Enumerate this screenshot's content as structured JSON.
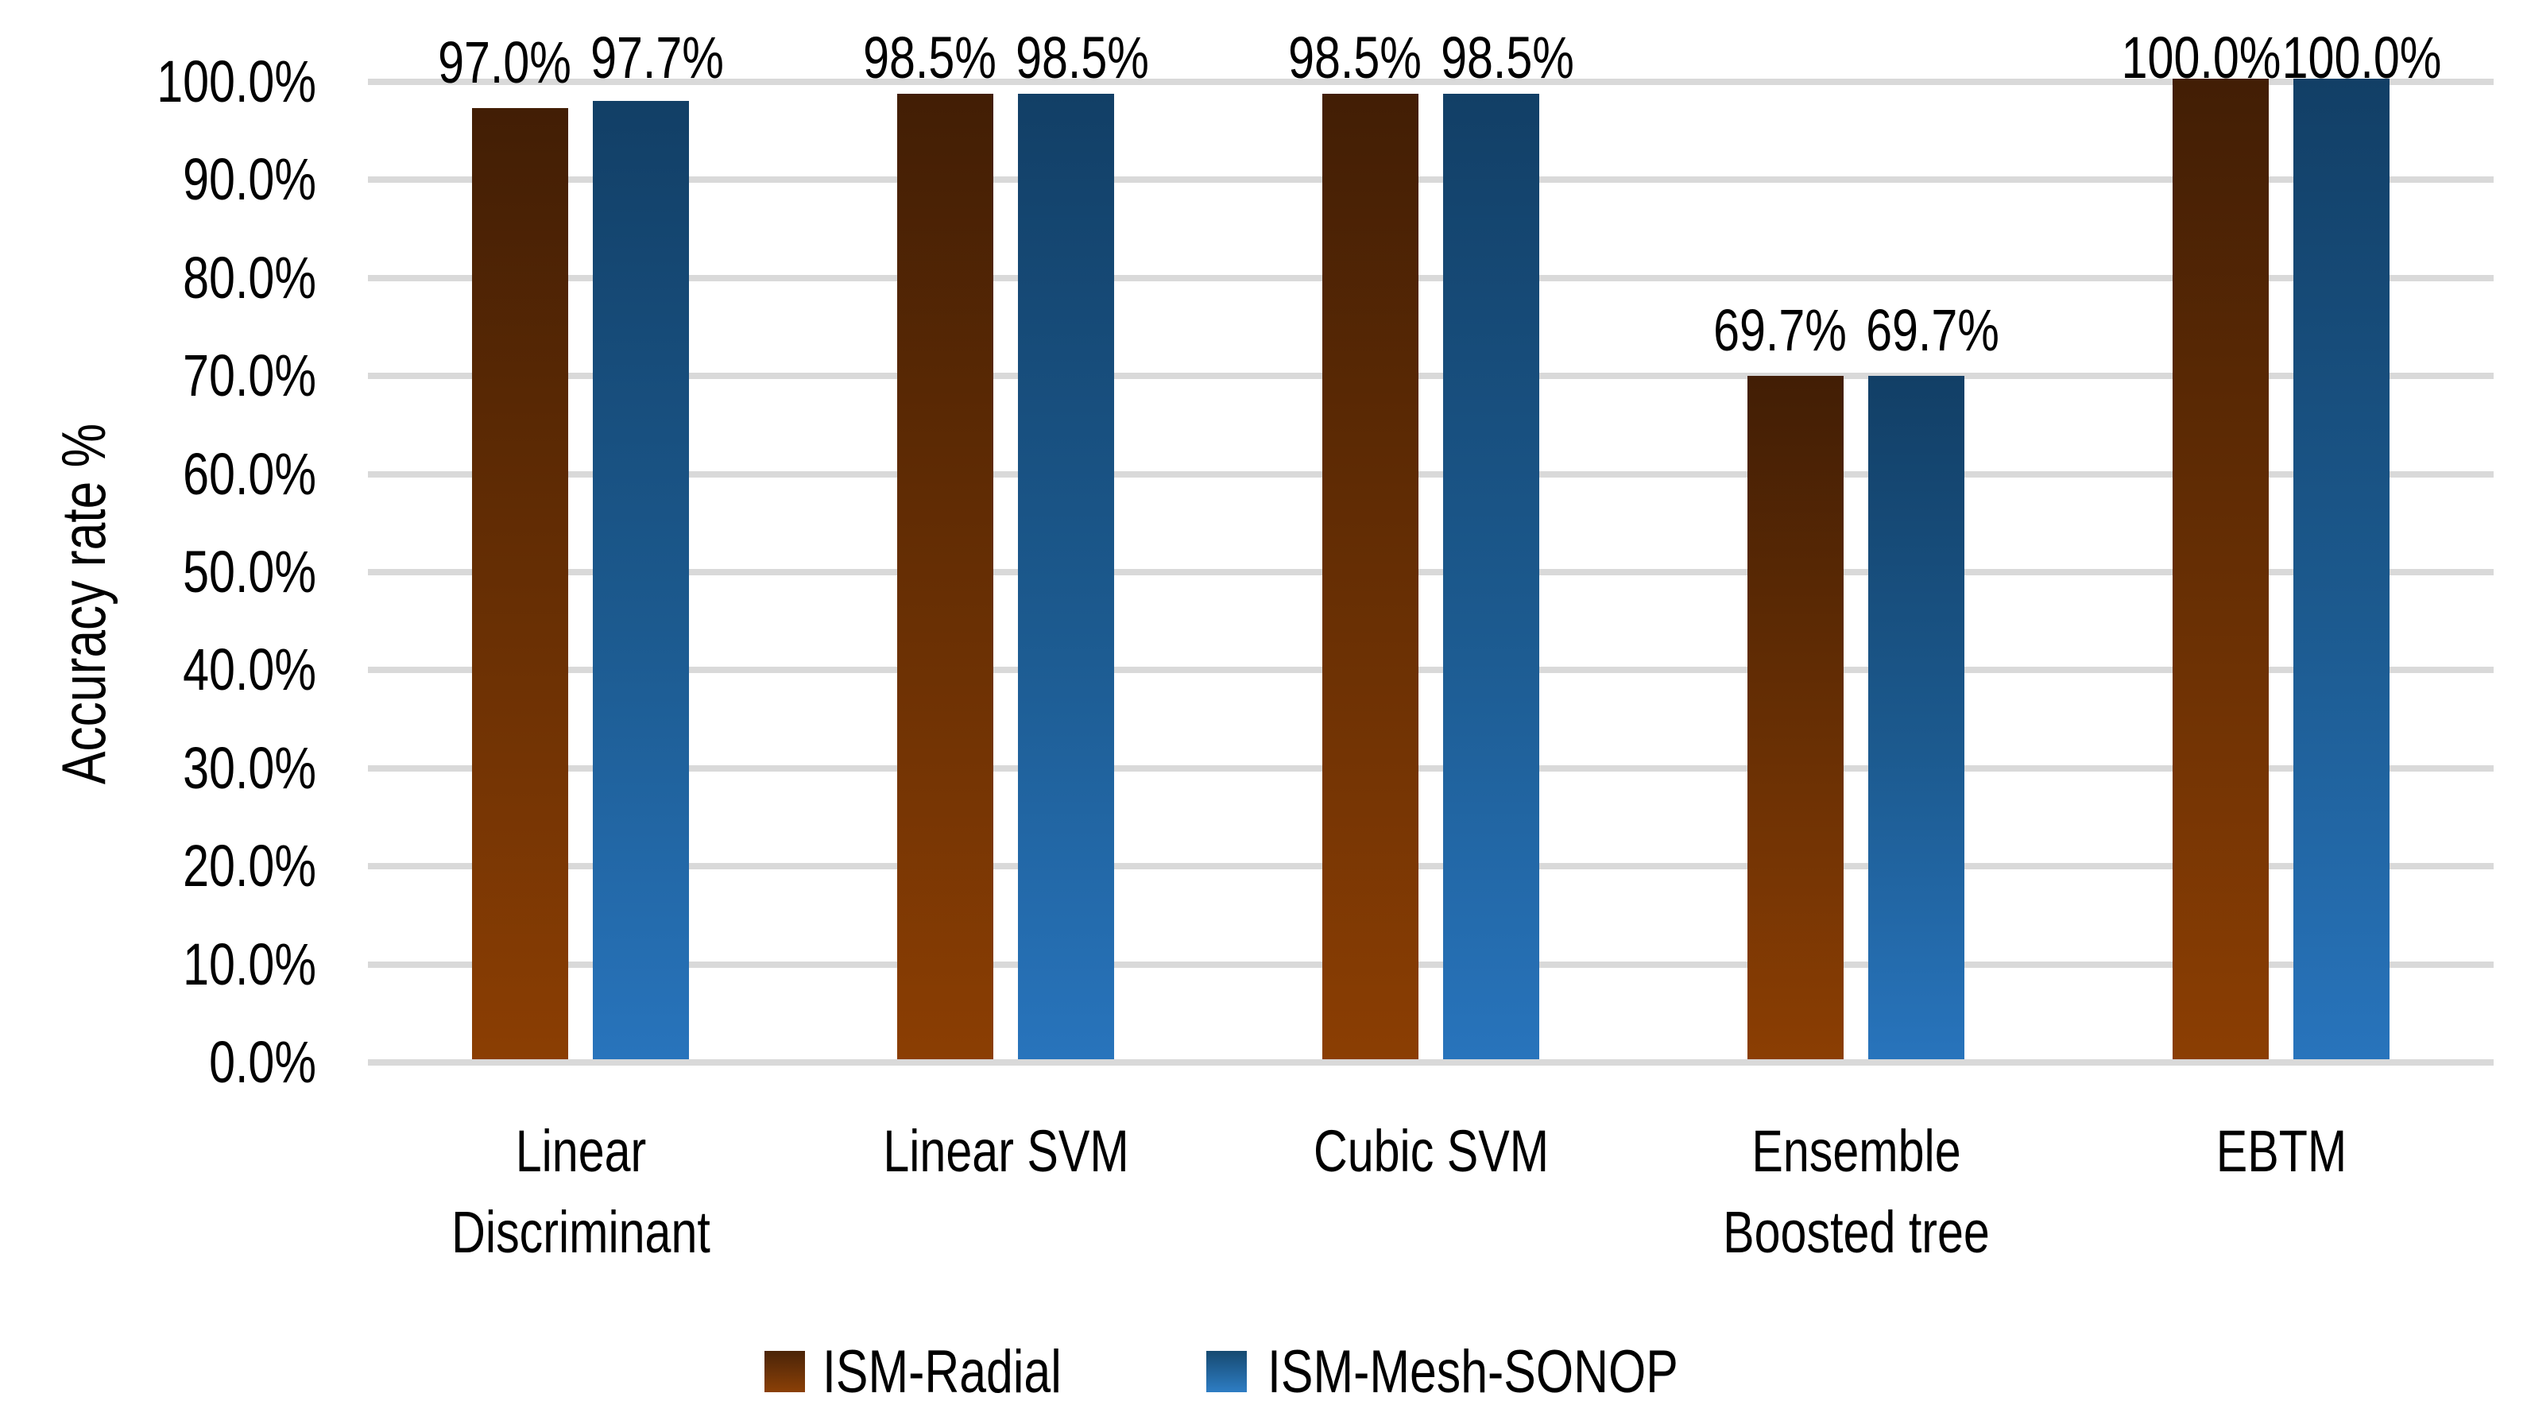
{
  "chart_data": {
    "type": "bar",
    "title": "",
    "categories": [
      "Linear Discriminant",
      "Linear SVM",
      "Cubic SVM",
      "Ensemble Boosted tree",
      "EBTM"
    ],
    "category_label_lines": [
      [
        "Linear",
        "Discriminant"
      ],
      [
        "Linear SVM",
        ""
      ],
      [
        "Cubic SVM",
        ""
      ],
      [
        "Ensemble",
        "Boosted tree"
      ],
      [
        "EBTM",
        ""
      ]
    ],
    "series": [
      {
        "name": "ISM-Radial",
        "values": [
          97.0,
          98.5,
          98.5,
          69.7,
          100.0
        ],
        "data_labels": [
          "97.0%",
          "98.5%",
          "98.5%",
          "69.7%",
          "100.0%"
        ],
        "color_top": "#421E05",
        "color_bottom": "#8B3E03"
      },
      {
        "name": "ISM-Mesh-SONOP",
        "values": [
          97.7,
          98.5,
          98.5,
          69.7,
          100.0
        ],
        "data_labels": [
          "97.7%",
          "98.5%",
          "98.5%",
          "69.7%",
          "100.0%"
        ],
        "color_top": "#123F66",
        "color_bottom": "#2874BC"
      }
    ],
    "xlabel": "",
    "ylabel": "Accuracy rate %",
    "ylim": [
      0,
      100
    ],
    "ytick_step": 10,
    "ytick_labels": [
      "0.0%",
      "10.0%",
      "20.0%",
      "30.0%",
      "40.0%",
      "50.0%",
      "60.0%",
      "70.0%",
      "80.0%",
      "90.0%",
      "100.0%"
    ],
    "grid": true,
    "gridline_color": "#D9D9D9",
    "background_color": "#FFFFFF",
    "text_color": "#000000",
    "legend_position": "bottom"
  }
}
